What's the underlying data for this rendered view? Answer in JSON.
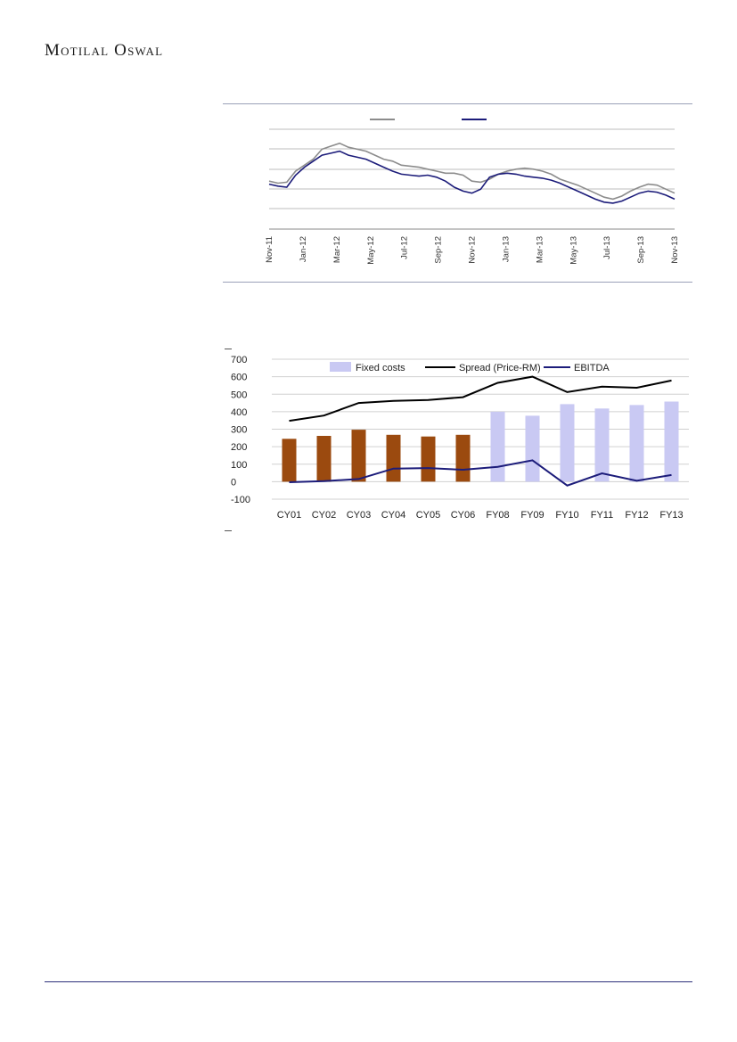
{
  "header": {
    "brand": "Motilal Oswal"
  },
  "chart_data": [
    {
      "type": "line",
      "x_ticks": [
        "Nov-11",
        "Jan-12",
        "Mar-12",
        "May-12",
        "Jul-12",
        "Sep-12",
        "Nov-12",
        "Jan-13",
        "Mar-13",
        "May-13",
        "Jul-13",
        "Sep-13",
        "Nov-13"
      ],
      "grid": true,
      "legend": "top",
      "series": [
        {
          "color": "#8c8c8c",
          "values": [
            48,
            46,
            47,
            58,
            64,
            70,
            80,
            83,
            86,
            82,
            80,
            78,
            74,
            70,
            68,
            64,
            63,
            62,
            60,
            58,
            56,
            56,
            54,
            48,
            47,
            50,
            55,
            58,
            60,
            61,
            60,
            58,
            55,
            50,
            47,
            44,
            40,
            36,
            32,
            30,
            33,
            38,
            42,
            45,
            44,
            40,
            36
          ]
        },
        {
          "color": "#1c1c7a",
          "values": [
            45,
            43,
            42,
            54,
            62,
            68,
            74,
            76,
            78,
            74,
            72,
            70,
            66,
            62,
            58,
            55,
            54,
            53,
            54,
            52,
            48,
            42,
            38,
            36,
            40,
            52,
            55,
            56,
            55,
            53,
            52,
            51,
            49,
            46,
            42,
            38,
            34,
            30,
            27,
            26,
            28,
            32,
            36,
            38,
            37,
            34,
            30
          ]
        }
      ]
    },
    {
      "type": "bar",
      "categories": [
        "CY01",
        "CY02",
        "CY03",
        "CY04",
        "CY05",
        "CY06",
        "FY08",
        "FY09",
        "FY10",
        "FY11",
        "FY12",
        "FY13"
      ],
      "ylim": [
        -100,
        700
      ],
      "y_ticks": [
        "700",
        "600",
        "500",
        "400",
        "300",
        "200",
        "100",
        "0",
        "-100"
      ],
      "grid": true,
      "legend": "top",
      "series": [
        {
          "name": "Fixed costs",
          "values": [
            245,
            262,
            297,
            268,
            258,
            268,
            400,
            377,
            443,
            418,
            438,
            458
          ],
          "colors": [
            "#9b4a0f",
            "#9b4a0f",
            "#9b4a0f",
            "#9b4a0f",
            "#9b4a0f",
            "#9b4a0f",
            "#c9c9f3",
            "#c9c9f3",
            "#c9c9f3",
            "#c9c9f3",
            "#c9c9f3",
            "#c9c9f3"
          ]
        },
        {
          "name": "Spread (Price-RM)",
          "type": "line",
          "color": "#000000",
          "values": [
            348,
            378,
            450,
            462,
            467,
            483,
            565,
            600,
            512,
            543,
            537,
            578
          ]
        },
        {
          "name": "EBITDA",
          "type": "line",
          "color": "#1c1c7a",
          "values": [
            -3,
            3,
            15,
            75,
            78,
            68,
            85,
            122,
            -22,
            48,
            5,
            38
          ]
        }
      ]
    }
  ]
}
